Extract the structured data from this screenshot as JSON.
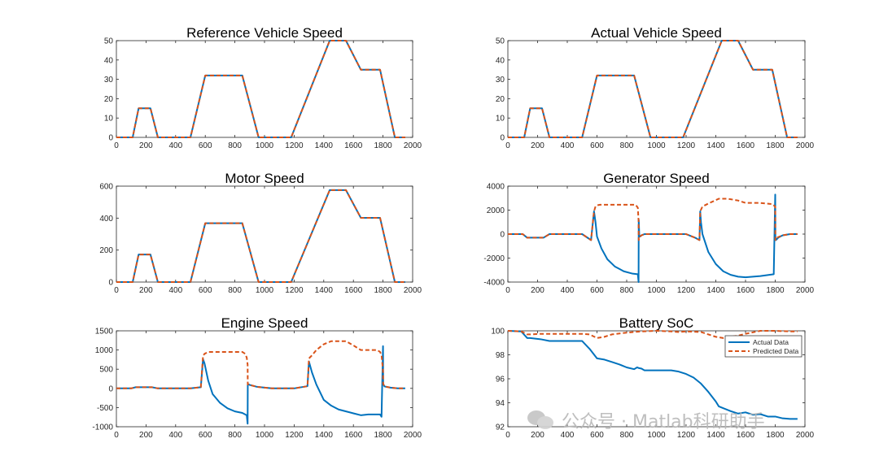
{
  "colors": {
    "actual": "#0072BD",
    "predicted": "#D95319",
    "axis": "#262626",
    "background": "#ffffff"
  },
  "watermark": {
    "icon": "wechat-icon",
    "text": "公众号 · Matlab科研助手"
  },
  "chart_data": [
    {
      "type": "line",
      "title": "Reference Vehicle Speed",
      "xlim": [
        0,
        2000
      ],
      "ylim": [
        0,
        50
      ],
      "xticks": [
        0,
        200,
        400,
        600,
        800,
        1000,
        1200,
        1400,
        1600,
        1800,
        2000
      ],
      "yticks": [
        0,
        10,
        20,
        30,
        40,
        50
      ],
      "series": [
        {
          "name": "Actual Data",
          "style": "solid",
          "x": [
            0,
            110,
            150,
            230,
            280,
            500,
            600,
            850,
            960,
            1180,
            1440,
            1550,
            1650,
            1780,
            1880,
            1950
          ],
          "y": [
            0,
            0,
            15,
            15,
            0,
            0,
            32,
            32,
            0,
            0,
            50,
            50,
            35,
            35,
            0,
            0
          ]
        },
        {
          "name": "Predicted Data",
          "style": "dashed",
          "x": [
            0,
            110,
            150,
            230,
            280,
            500,
            600,
            850,
            960,
            1180,
            1440,
            1550,
            1650,
            1780,
            1880,
            1950
          ],
          "y": [
            0,
            0,
            15,
            15,
            0,
            0,
            32,
            32,
            0,
            0,
            50,
            50,
            35,
            35,
            0,
            0
          ]
        }
      ]
    },
    {
      "type": "line",
      "title": "Actual Vehicle Speed",
      "xlim": [
        0,
        2000
      ],
      "ylim": [
        0,
        50
      ],
      "xticks": [
        0,
        200,
        400,
        600,
        800,
        1000,
        1200,
        1400,
        1600,
        1800,
        2000
      ],
      "yticks": [
        0,
        10,
        20,
        30,
        40,
        50
      ],
      "series": [
        {
          "name": "Actual Data",
          "style": "solid",
          "x": [
            0,
            110,
            150,
            230,
            280,
            500,
            600,
            850,
            960,
            1180,
            1440,
            1550,
            1650,
            1780,
            1880,
            1950
          ],
          "y": [
            0,
            0,
            15,
            15,
            0,
            0,
            32,
            32,
            0,
            0,
            50,
            50,
            35,
            35,
            0,
            0
          ]
        },
        {
          "name": "Predicted Data",
          "style": "dashed",
          "x": [
            0,
            110,
            150,
            230,
            280,
            500,
            600,
            850,
            960,
            1180,
            1440,
            1550,
            1650,
            1780,
            1880,
            1950
          ],
          "y": [
            0,
            0,
            15,
            15,
            0,
            0,
            32,
            32,
            0,
            0,
            50,
            50,
            35,
            35,
            0,
            0
          ]
        }
      ]
    },
    {
      "type": "line",
      "title": "Motor Speed",
      "xlim": [
        0,
        2000
      ],
      "ylim": [
        0,
        600
      ],
      "xticks": [
        0,
        200,
        400,
        600,
        800,
        1000,
        1200,
        1400,
        1600,
        1800,
        2000
      ],
      "yticks": [
        0,
        200,
        400,
        600
      ],
      "series": [
        {
          "name": "Actual Data",
          "style": "solid",
          "x": [
            0,
            110,
            150,
            230,
            280,
            500,
            600,
            850,
            960,
            1180,
            1440,
            1550,
            1650,
            1780,
            1880,
            1950
          ],
          "y": [
            0,
            0,
            172,
            172,
            0,
            0,
            368,
            368,
            0,
            0,
            575,
            575,
            402,
            402,
            0,
            0
          ]
        },
        {
          "name": "Predicted Data",
          "style": "dashed",
          "x": [
            0,
            110,
            150,
            230,
            280,
            500,
            600,
            850,
            960,
            1180,
            1440,
            1550,
            1650,
            1780,
            1880,
            1950
          ],
          "y": [
            0,
            0,
            172,
            172,
            0,
            0,
            368,
            368,
            0,
            0,
            575,
            575,
            402,
            402,
            0,
            0
          ]
        }
      ]
    },
    {
      "type": "line",
      "title": "Generator Speed",
      "xlim": [
        0,
        2000
      ],
      "ylim": [
        -4000,
        4000
      ],
      "xticks": [
        0,
        200,
        400,
        600,
        800,
        1000,
        1200,
        1400,
        1600,
        1800,
        2000
      ],
      "yticks": [
        -4000,
        -2000,
        0,
        2000,
        4000
      ],
      "series": [
        {
          "name": "Actual Data",
          "style": "solid",
          "x": [
            0,
            100,
            130,
            200,
            240,
            280,
            500,
            560,
            580,
            590,
            600,
            630,
            670,
            720,
            780,
            840,
            875,
            880,
            881,
            885,
            890,
            900,
            920,
            960,
            1000,
            1050,
            1100,
            1200,
            1260,
            1290,
            1295,
            1300,
            1310,
            1350,
            1400,
            1450,
            1500,
            1550,
            1600,
            1700,
            1790,
            1800,
            1801,
            1805,
            1820,
            1850,
            1900,
            1950
          ],
          "y": [
            0,
            0,
            -300,
            -300,
            -300,
            0,
            0,
            -500,
            1900,
            1000,
            -200,
            -1200,
            -2100,
            -2700,
            -3100,
            -3300,
            -3350,
            -4000,
            1200,
            -200,
            -200,
            -100,
            0,
            0,
            0,
            0,
            0,
            0,
            -300,
            -500,
            1900,
            1000,
            0,
            -1500,
            -2500,
            -3100,
            -3400,
            -3550,
            -3600,
            -3500,
            -3350,
            3300,
            -200,
            -500,
            -300,
            -100,
            0,
            0
          ]
        },
        {
          "name": "Predicted Data",
          "style": "dashed",
          "x": [
            0,
            100,
            130,
            200,
            240,
            280,
            500,
            560,
            580,
            590,
            600,
            620,
            860,
            875,
            880,
            881,
            885,
            890,
            900,
            920,
            960,
            1000,
            1050,
            1100,
            1200,
            1260,
            1290,
            1295,
            1310,
            1350,
            1420,
            1480,
            1550,
            1600,
            1650,
            1700,
            1780,
            1800,
            1801,
            1810,
            1850,
            1900,
            1950
          ],
          "y": [
            0,
            0,
            -300,
            -300,
            -300,
            0,
            0,
            -500,
            1900,
            2300,
            2400,
            2450,
            2450,
            2200,
            1100,
            -500,
            -300,
            -200,
            -100,
            0,
            0,
            0,
            0,
            0,
            0,
            -300,
            -500,
            1900,
            2300,
            2550,
            2950,
            2950,
            2800,
            2600,
            2600,
            2600,
            2500,
            2300,
            -500,
            -300,
            -100,
            0,
            0
          ]
        }
      ]
    },
    {
      "type": "line",
      "title": "Engine Speed",
      "xlim": [
        0,
        2000
      ],
      "ylim": [
        -1000,
        1500
      ],
      "xticks": [
        0,
        200,
        400,
        600,
        800,
        1000,
        1200,
        1400,
        1600,
        1800,
        2000
      ],
      "yticks": [
        -1000,
        -500,
        0,
        500,
        1000,
        1500
      ],
      "series": [
        {
          "name": "Actual Data",
          "style": "solid",
          "x": [
            0,
            100,
            130,
            200,
            240,
            280,
            500,
            570,
            585,
            595,
            620,
            650,
            700,
            750,
            800,
            850,
            880,
            886,
            887,
            890,
            900,
            950,
            1000,
            1050,
            1100,
            1150,
            1200,
            1280,
            1290,
            1300,
            1320,
            1350,
            1400,
            1450,
            1500,
            1550,
            1600,
            1650,
            1700,
            1780,
            1790,
            1800,
            1801,
            1810,
            1850,
            1900,
            1950
          ],
          "y": [
            0,
            0,
            30,
            30,
            30,
            0,
            0,
            30,
            760,
            650,
            200,
            -150,
            -380,
            -520,
            -600,
            -640,
            -700,
            -920,
            100,
            110,
            90,
            40,
            20,
            0,
            0,
            0,
            0,
            50,
            60,
            700,
            420,
            100,
            -300,
            -450,
            -550,
            -600,
            -650,
            -700,
            -680,
            -680,
            -740,
            1100,
            120,
            50,
            20,
            0,
            0
          ]
        },
        {
          "name": "Predicted Data",
          "style": "dashed",
          "x": [
            0,
            100,
            130,
            200,
            240,
            280,
            500,
            570,
            585,
            595,
            620,
            850,
            870,
            880,
            886,
            887,
            890,
            900,
            950,
            1000,
            1050,
            1100,
            1150,
            1200,
            1280,
            1290,
            1300,
            1320,
            1350,
            1400,
            1450,
            1500,
            1550,
            1600,
            1650,
            1700,
            1760,
            1780,
            1790,
            1800,
            1801,
            1810,
            1850,
            1900,
            1950
          ],
          "y": [
            0,
            0,
            30,
            30,
            30,
            0,
            0,
            30,
            850,
            900,
            950,
            950,
            900,
            800,
            620,
            100,
            110,
            90,
            40,
            20,
            0,
            0,
            0,
            0,
            50,
            60,
            780,
            860,
            1000,
            1150,
            1230,
            1230,
            1230,
            1120,
            1000,
            1000,
            1000,
            950,
            870,
            450,
            120,
            50,
            20,
            0,
            0
          ]
        }
      ]
    },
    {
      "type": "line",
      "title": "Battery SoC",
      "xlim": [
        0,
        2000
      ],
      "ylim": [
        92,
        100
      ],
      "xticks": [
        0,
        200,
        400,
        600,
        800,
        1000,
        1200,
        1400,
        1600,
        1800,
        2000
      ],
      "yticks": [
        92,
        94,
        96,
        98,
        100
      ],
      "legend": {
        "position": "inside-top-right",
        "entries": [
          "Actual Data",
          "Predicted Data"
        ]
      },
      "series": [
        {
          "name": "Actual Data",
          "style": "solid",
          "x": [
            0,
            90,
            130,
            150,
            220,
            280,
            350,
            500,
            550,
            600,
            650,
            700,
            750,
            800,
            850,
            870,
            880,
            900,
            920,
            960,
            1000,
            1050,
            1100,
            1150,
            1200,
            1250,
            1300,
            1350,
            1400,
            1420,
            1450,
            1500,
            1550,
            1600,
            1650,
            1700,
            1750,
            1800,
            1850,
            1900,
            1950
          ],
          "y": [
            100,
            99.95,
            99.4,
            99.4,
            99.3,
            99.15,
            99.15,
            99.15,
            98.5,
            97.7,
            97.6,
            97.4,
            97.2,
            96.95,
            96.8,
            96.95,
            96.9,
            96.85,
            96.7,
            96.7,
            96.7,
            96.7,
            96.7,
            96.6,
            96.4,
            96.1,
            95.6,
            94.9,
            94.1,
            93.7,
            93.55,
            93.3,
            93.1,
            93.2,
            93.0,
            93.05,
            92.85,
            92.85,
            92.7,
            92.65,
            92.65
          ]
        },
        {
          "name": "Predicted Data",
          "style": "dashed",
          "x": [
            0,
            90,
            130,
            150,
            220,
            280,
            350,
            500,
            550,
            600,
            650,
            700,
            800,
            850,
            900,
            1000,
            1100,
            1150,
            1200,
            1300,
            1350,
            1400,
            1450,
            1500,
            1550,
            1600,
            1700,
            1800,
            1900,
            1950
          ],
          "y": [
            100,
            99.95,
            99.7,
            99.7,
            99.75,
            99.75,
            99.75,
            99.75,
            99.7,
            99.4,
            99.5,
            99.7,
            99.85,
            99.9,
            99.95,
            100,
            99.95,
            99.9,
            99.95,
            99.9,
            99.7,
            99.5,
            99.4,
            99.5,
            99.6,
            99.75,
            100,
            100,
            99.95,
            99.95
          ]
        }
      ]
    }
  ]
}
